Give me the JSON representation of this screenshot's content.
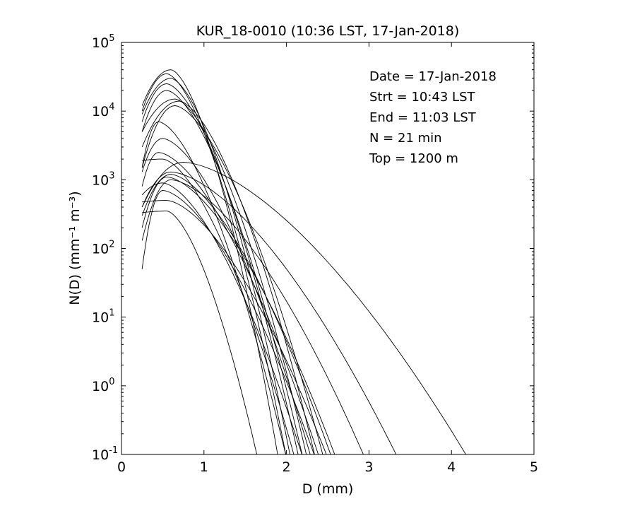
{
  "chart_data": {
    "type": "line",
    "title": "KUR_18-0010 (10:36 LST, 17-Jan-2018)",
    "xlabel": "D (mm)",
    "ylabel": "N(D) (mm⁻¹ m⁻³)",
    "xlim": [
      0,
      5
    ],
    "ylim": [
      0.1,
      100000
    ],
    "yscale": "log",
    "grid": false,
    "x_ticks": [
      0,
      1,
      2,
      3,
      4,
      5
    ],
    "y_ticks": [
      {
        "value": 0.1,
        "base": "10",
        "exp": "-1"
      },
      {
        "value": 1,
        "base": "10",
        "exp": "0"
      },
      {
        "value": 10,
        "base": "10",
        "exp": "1"
      },
      {
        "value": 100,
        "base": "10",
        "exp": "2"
      },
      {
        "value": 1000,
        "base": "10",
        "exp": "3"
      },
      {
        "value": 10000,
        "base": "10",
        "exp": "4"
      },
      {
        "value": 100000,
        "base": "10",
        "exp": "5"
      }
    ],
    "line_color": "#000000",
    "annotations": [
      "Date = 17-Jan-2018",
      "Strt = 10:43 LST",
      "End = 11:03 LST",
      "N    = 21 min",
      "Top = 1200 m"
    ],
    "series": [
      {
        "peak_D": 0.6,
        "peak_N": 40000,
        "end_D": 1.9
      },
      {
        "peak_D": 0.55,
        "peak_N": 35000,
        "end_D": 2.0
      },
      {
        "peak_D": 0.55,
        "peak_N": 25000,
        "end_D": 2.15
      },
      {
        "peak_D": 0.55,
        "peak_N": 20000,
        "end_D": 2.2
      },
      {
        "peak_D": 0.65,
        "peak_N": 15000,
        "end_D": 2.25
      },
      {
        "peak_D": 0.7,
        "peak_N": 14000,
        "end_D": 2.35
      },
      {
        "peak_D": 0.65,
        "peak_N": 12000,
        "end_D": 2.45
      },
      {
        "peak_D": 0.45,
        "peak_N": 7000,
        "end_D": 2.0
      },
      {
        "peak_D": 0.5,
        "peak_N": 4000,
        "end_D": 2.3
      },
      {
        "peak_D": 0.45,
        "peak_N": 2500,
        "end_D": 2.4
      },
      {
        "peak_D": 0.75,
        "peak_N": 1800,
        "end_D": 4.2
      },
      {
        "peak_D": 0.6,
        "peak_N": 1300,
        "end_D": 3.35
      },
      {
        "peak_D": 0.6,
        "peak_N": 1200,
        "end_D": 2.55
      },
      {
        "peak_D": 0.55,
        "peak_N": 1100,
        "end_D": 2.6
      },
      {
        "peak_D": 0.6,
        "peak_N": 1000,
        "end_D": 2.95
      },
      {
        "peak_D": 0.5,
        "peak_N": 700,
        "end_D": 2.35
      },
      {
        "peak_D": 0.55,
        "peak_N": 500,
        "end_D": 2.5
      },
      {
        "peak_D": 0.55,
        "peak_N": 350,
        "end_D": 1.65
      },
      {
        "peak_D": 0.5,
        "peak_N": 2000,
        "end_D": 2.1
      },
      {
        "peak_D": 0.6,
        "peak_N": 30000,
        "end_D": 2.05
      },
      {
        "peak_D": 0.5,
        "peak_N": 900,
        "end_D": 2.2
      }
    ],
    "start_D": 0.25,
    "start_N": [
      12000,
      10000,
      7000,
      5000,
      5000,
      3000,
      1500,
      1500,
      1300,
      800,
      400,
      400,
      300,
      200,
      130,
      50,
      1200,
      6000,
      2000,
      9000,
      600
    ]
  }
}
